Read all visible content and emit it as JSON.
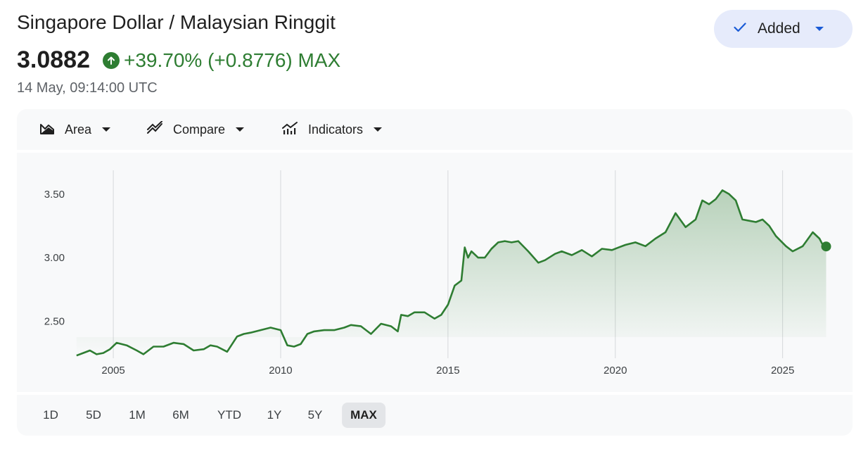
{
  "header": {
    "title": "Singapore Dollar / Malaysian Ringgit",
    "price": "3.0882",
    "change": "+39.70% (+0.8776) MAX",
    "timestamp": "14 May, 09:14:00 UTC",
    "added_label": "Added"
  },
  "toolbar": {
    "area_label": "Area",
    "compare_label": "Compare",
    "indicators_label": "Indicators"
  },
  "ranges": [
    "1D",
    "5D",
    "1M",
    "6M",
    "YTD",
    "1Y",
    "5Y",
    "MAX"
  ],
  "active_range": "MAX",
  "colors": {
    "accent_green": "#2e7d32",
    "button_bg": "#e6ebfb",
    "check_blue": "#1a5bd6"
  },
  "chart_data": {
    "type": "area",
    "x_ticks": [
      2005,
      2010,
      2015,
      2020,
      2025
    ],
    "y_ticks": [
      2.5,
      3.0,
      3.5
    ],
    "ylim": [
      2.22,
      3.77
    ],
    "xlim": [
      2003.8,
      2026.5
    ],
    "grid": "vertical",
    "series": [
      {
        "x": [
          2003.9,
          2004.1,
          2004.3,
          2004.5,
          2004.7,
          2004.9,
          2005.1,
          2005.4,
          2005.7,
          2005.9,
          2006.2,
          2006.5,
          2006.8,
          2007.1,
          2007.4,
          2007.7,
          2007.9,
          2008.1,
          2008.4,
          2008.7,
          2008.9,
          2009.1,
          2009.4,
          2009.7,
          2010.0,
          2010.2,
          2010.4,
          2010.6,
          2010.8,
          2011.0,
          2011.3,
          2011.6,
          2011.9,
          2012.1,
          2012.4,
          2012.7,
          2013.0,
          2013.3,
          2013.5,
          2013.6,
          2013.8,
          2014.0,
          2014.3,
          2014.6,
          2014.8,
          2015.0,
          2015.2,
          2015.4,
          2015.5,
          2015.6,
          2015.7,
          2015.9,
          2016.1,
          2016.3,
          2016.5,
          2016.7,
          2016.9,
          2017.1,
          2017.4,
          2017.7,
          2017.9,
          2018.2,
          2018.4,
          2018.7,
          2019.0,
          2019.3,
          2019.6,
          2019.9,
          2020.1,
          2020.3,
          2020.6,
          2020.9,
          2021.2,
          2021.5,
          2021.8,
          2022.1,
          2022.4,
          2022.6,
          2022.8,
          2023.0,
          2023.2,
          2023.4,
          2023.6,
          2023.8,
          2024.0,
          2024.2,
          2024.4,
          2024.6,
          2024.8,
          2025.1,
          2025.3,
          2025.6,
          2025.9,
          2026.1,
          2026.2,
          2026.3
        ],
        "y": [
          2.23,
          2.25,
          2.27,
          2.24,
          2.25,
          2.28,
          2.33,
          2.31,
          2.27,
          2.24,
          2.3,
          2.3,
          2.33,
          2.32,
          2.27,
          2.28,
          2.31,
          2.3,
          2.26,
          2.38,
          2.4,
          2.41,
          2.43,
          2.45,
          2.43,
          2.31,
          2.3,
          2.32,
          2.4,
          2.42,
          2.43,
          2.43,
          2.45,
          2.47,
          2.46,
          2.4,
          2.48,
          2.46,
          2.42,
          2.55,
          2.54,
          2.57,
          2.57,
          2.52,
          2.55,
          2.63,
          2.78,
          2.82,
          3.08,
          3.0,
          3.05,
          3.0,
          3.0,
          3.07,
          3.12,
          3.13,
          3.12,
          3.13,
          3.05,
          2.96,
          2.98,
          3.03,
          3.05,
          3.02,
          3.06,
          3.01,
          3.07,
          3.06,
          3.08,
          3.1,
          3.12,
          3.09,
          3.15,
          3.2,
          3.35,
          3.24,
          3.3,
          3.45,
          3.42,
          3.46,
          3.53,
          3.5,
          3.45,
          3.3,
          3.29,
          3.28,
          3.3,
          3.25,
          3.17,
          3.09,
          3.05,
          3.09,
          3.2,
          3.15,
          3.1,
          3.088
        ]
      }
    ]
  }
}
